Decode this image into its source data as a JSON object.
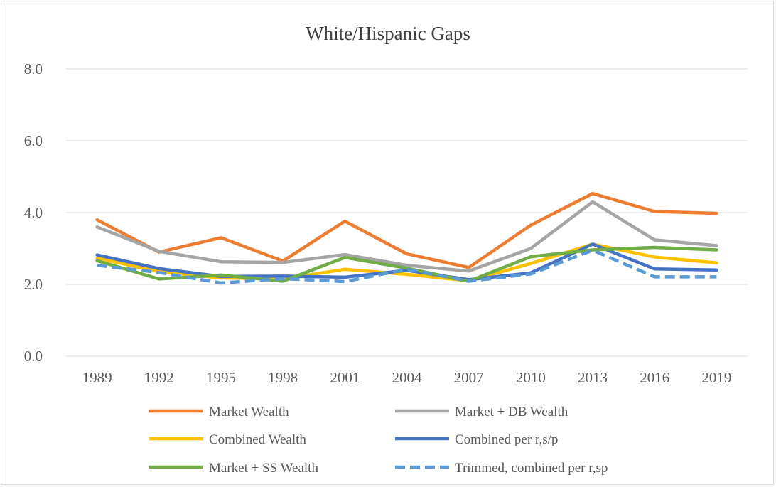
{
  "chart_data": {
    "type": "line",
    "title": "White/Hispanic Gaps",
    "xlabel": "",
    "ylabel": "",
    "categories": [
      "1989",
      "1992",
      "1995",
      "1998",
      "2001",
      "2004",
      "2007",
      "2010",
      "2013",
      "2016",
      "2019"
    ],
    "ylim": [
      0,
      8
    ],
    "yticks": [
      "0.0",
      "2.0",
      "4.0",
      "6.0",
      "8.0"
    ],
    "grid": true,
    "legend_position": "bottom",
    "series": [
      {
        "name": "Market Wealth",
        "color": "#ED7D31",
        "dash": false,
        "values": [
          3.8,
          2.9,
          3.3,
          2.65,
          3.76,
          2.85,
          2.47,
          3.65,
          4.53,
          4.03,
          3.98
        ]
      },
      {
        "name": "Market + DB Wealth",
        "color": "#A5A5A5",
        "dash": false,
        "values": [
          3.6,
          2.92,
          2.63,
          2.61,
          2.83,
          2.53,
          2.37,
          3.0,
          4.3,
          3.24,
          3.08
        ]
      },
      {
        "name": "Combined Wealth",
        "color": "#FFC000",
        "dash": false,
        "values": [
          2.73,
          2.35,
          2.18,
          2.15,
          2.42,
          2.28,
          2.1,
          2.58,
          3.12,
          2.76,
          2.6
        ]
      },
      {
        "name": "Combined per r,s/p",
        "color": "#4472C4",
        "dash": false,
        "values": [
          2.82,
          2.44,
          2.22,
          2.23,
          2.2,
          2.39,
          2.13,
          2.32,
          3.12,
          2.43,
          2.4
        ]
      },
      {
        "name": "Market + SS Wealth",
        "color": "#70AD47",
        "dash": false,
        "values": [
          2.66,
          2.15,
          2.26,
          2.09,
          2.75,
          2.45,
          2.09,
          2.77,
          2.96,
          3.03,
          2.96
        ]
      },
      {
        "name": "Trimmed, combined per r,sp",
        "color": "#5B9BD5",
        "dash": true,
        "values": [
          2.53,
          2.33,
          2.04,
          2.16,
          2.08,
          2.42,
          2.09,
          2.29,
          2.95,
          2.21,
          2.21
        ]
      }
    ]
  }
}
